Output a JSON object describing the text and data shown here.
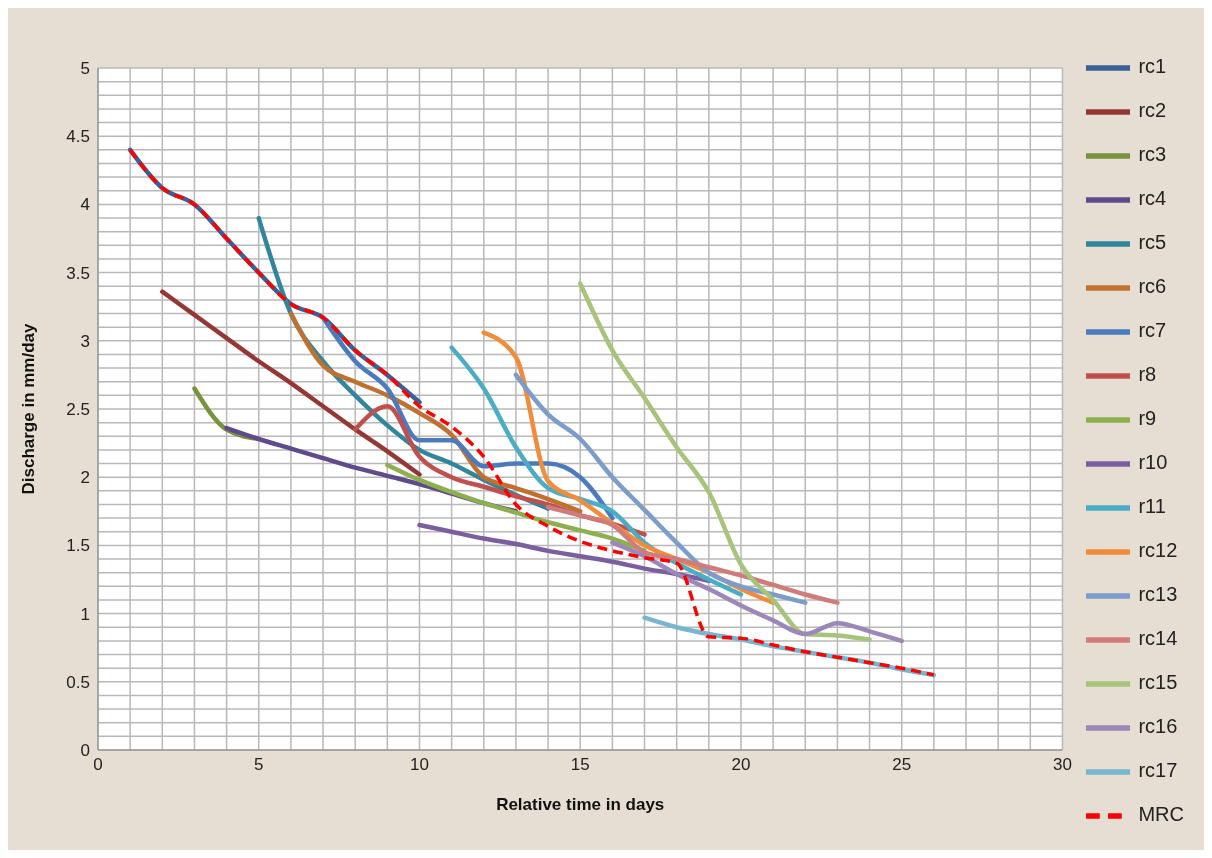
{
  "chart_data": {
    "type": "line",
    "xlabel": "Relative time in days",
    "ylabel": "Discharge in mm/day",
    "xlim": [
      0,
      30
    ],
    "xticks": [
      0,
      5,
      10,
      15,
      20,
      25,
      30
    ],
    "ylim": [
      0,
      5
    ],
    "yticks": [
      0,
      0.5,
      1,
      1.5,
      2,
      2.5,
      3,
      3.5,
      4,
      4.5,
      5
    ],
    "grid": true,
    "legend": "right",
    "marker": "none",
    "series": [
      {
        "name": "rc1",
        "color": "#3b6096",
        "x": [
          1,
          2,
          3,
          4,
          5,
          6,
          7,
          8,
          9,
          10
        ],
        "values": [
          4.4,
          4.12,
          4.0,
          3.75,
          3.5,
          3.27,
          3.17,
          2.93,
          2.75,
          2.55
        ]
      },
      {
        "name": "rc2",
        "color": "#953735",
        "x": [
          2,
          3,
          4,
          5,
          6,
          7,
          8,
          9,
          10
        ],
        "values": [
          3.36,
          3.19,
          3.02,
          2.85,
          2.69,
          2.52,
          2.35,
          2.19,
          2.02
        ]
      },
      {
        "name": "rc3",
        "color": "#77933c",
        "x": [
          3,
          4,
          5
        ],
        "values": [
          2.65,
          2.35,
          2.28
        ]
      },
      {
        "name": "rc4",
        "color": "#5f4b8b",
        "x": [
          4,
          5,
          6,
          7,
          8,
          9,
          10,
          11,
          12,
          13
        ],
        "values": [
          2.36,
          2.28,
          2.21,
          2.14,
          2.07,
          2.01,
          1.95,
          1.88,
          1.81,
          1.75
        ]
      },
      {
        "name": "rc5",
        "color": "#31859c",
        "x": [
          5,
          6,
          7,
          8,
          9,
          10,
          11,
          12,
          13,
          14
        ],
        "values": [
          3.9,
          3.2,
          2.85,
          2.6,
          2.38,
          2.2,
          2.1,
          1.98,
          1.87,
          1.77
        ]
      },
      {
        "name": "rc6",
        "color": "#c0702f",
        "x": [
          6,
          7,
          8,
          9,
          10,
          11,
          12,
          13,
          14,
          15
        ],
        "values": [
          3.2,
          2.82,
          2.7,
          2.6,
          2.47,
          2.31,
          2.0,
          1.92,
          1.84,
          1.75
        ]
      },
      {
        "name": "rc7",
        "color": "#4a7bbf",
        "x": [
          7,
          8,
          9,
          10,
          11,
          12,
          13,
          14,
          15,
          16
        ],
        "values": [
          3.17,
          2.85,
          2.65,
          2.27,
          2.27,
          2.08,
          2.1,
          2.1,
          2.0,
          1.7
        ]
      },
      {
        "name": "r8",
        "color": "#c0504d",
        "x": [
          8,
          9,
          10,
          11,
          12,
          13,
          14,
          15,
          16,
          17
        ],
        "values": [
          2.35,
          2.52,
          2.15,
          2.0,
          1.93,
          1.86,
          1.8,
          1.72,
          1.66,
          1.58
        ]
      },
      {
        "name": "r9",
        "color": "#8db04e",
        "x": [
          9,
          10,
          11,
          12,
          13,
          14,
          15,
          16,
          17
        ],
        "values": [
          2.09,
          1.98,
          1.89,
          1.81,
          1.74,
          1.67,
          1.61,
          1.55,
          1.46
        ]
      },
      {
        "name": "r10",
        "color": "#7a5ea0",
        "x": [
          10,
          11,
          12,
          13,
          14,
          15,
          16,
          17,
          18,
          19
        ],
        "values": [
          1.65,
          1.6,
          1.55,
          1.51,
          1.46,
          1.42,
          1.38,
          1.33,
          1.29,
          1.24
        ]
      },
      {
        "name": "r11",
        "color": "#4bacc6",
        "x": [
          11,
          12,
          13,
          14,
          15,
          16,
          17,
          18,
          19,
          20
        ],
        "values": [
          2.95,
          2.65,
          2.22,
          1.92,
          1.84,
          1.75,
          1.52,
          1.37,
          1.25,
          1.14
        ]
      },
      {
        "name": "rc12",
        "color": "#f08c3c",
        "x": [
          12,
          13,
          14,
          15,
          16,
          17,
          18,
          19,
          20,
          21
        ],
        "values": [
          3.06,
          2.88,
          1.97,
          1.83,
          1.66,
          1.5,
          1.4,
          1.3,
          1.18,
          1.08
        ]
      },
      {
        "name": "rc13",
        "color": "#7c9ccb",
        "x": [
          13,
          14,
          15,
          16,
          17,
          18,
          19,
          20,
          21,
          22
        ],
        "values": [
          2.75,
          2.46,
          2.28,
          2.0,
          1.76,
          1.52,
          1.3,
          1.2,
          1.14,
          1.08
        ]
      },
      {
        "name": "rc14",
        "color": "#d07c7a",
        "x": [
          14,
          15,
          16,
          17,
          18,
          19,
          20,
          21,
          22,
          23
        ],
        "values": [
          1.78,
          1.72,
          1.65,
          1.45,
          1.4,
          1.34,
          1.28,
          1.21,
          1.14,
          1.08
        ]
      },
      {
        "name": "rc15",
        "color": "#a7c47a",
        "x": [
          15,
          16,
          17,
          18,
          19,
          20,
          21,
          22,
          23,
          24
        ],
        "values": [
          3.42,
          2.93,
          2.58,
          2.22,
          1.89,
          1.36,
          1.1,
          0.85,
          0.84,
          0.81
        ]
      },
      {
        "name": "rc16",
        "color": "#9b87b8",
        "x": [
          16,
          17,
          18,
          19,
          20,
          21,
          22,
          23,
          24,
          25
        ],
        "values": [
          1.52,
          1.42,
          1.29,
          1.18,
          1.06,
          0.95,
          0.85,
          0.93,
          0.87,
          0.8
        ]
      },
      {
        "name": "rc17",
        "color": "#77b6cf",
        "x": [
          17,
          18,
          19,
          20,
          21,
          22,
          23,
          24,
          25,
          26
        ],
        "values": [
          0.97,
          0.9,
          0.85,
          0.81,
          0.76,
          0.72,
          0.68,
          0.64,
          0.59,
          0.55
        ]
      },
      {
        "name": "MRC",
        "color": "#ff0000",
        "line_style": "dashed",
        "x": [
          1,
          2,
          3,
          4,
          5,
          6,
          7,
          8,
          9,
          10,
          11,
          12,
          13,
          14,
          15,
          16,
          17,
          18,
          19,
          20,
          21,
          22,
          23,
          24,
          25,
          26
        ],
        "values": [
          4.4,
          4.12,
          4.0,
          3.75,
          3.5,
          3.27,
          3.17,
          2.93,
          2.75,
          2.52,
          2.37,
          2.15,
          1.8,
          1.64,
          1.53,
          1.46,
          1.41,
          1.37,
          0.83,
          0.82,
          0.77,
          0.72,
          0.68,
          0.64,
          0.6,
          0.55
        ]
      }
    ]
  }
}
